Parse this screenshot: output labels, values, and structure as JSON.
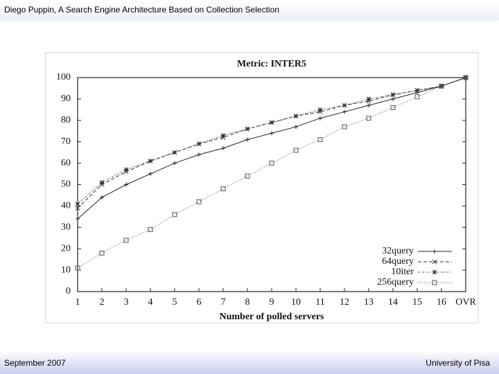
{
  "header": {
    "title": "Diego Puppin, A Search Engine Architecture Based on Collection Selection"
  },
  "footer": {
    "left": "September 2007",
    "right": "University of Pisa"
  },
  "chart_data": {
    "type": "line",
    "title": "Metric: INTER5",
    "x_label": "Number of polled servers",
    "categories": [
      "1",
      "2",
      "3",
      "4",
      "5",
      "6",
      "7",
      "8",
      "9",
      "10",
      "11",
      "12",
      "13",
      "14",
      "15",
      "16",
      "OVR"
    ],
    "ylim": [
      0,
      100
    ],
    "yticks": [
      0,
      10,
      20,
      30,
      40,
      50,
      60,
      70,
      80,
      90,
      100
    ],
    "legend": "lower right",
    "series": [
      {
        "name": "32query",
        "color": "#222222",
        "dash": "solid",
        "marker": "plus",
        "values": [
          34,
          44,
          50,
          55,
          60,
          64,
          67,
          71,
          74,
          77,
          81,
          84,
          87,
          90,
          93,
          96,
          100
        ]
      },
      {
        "name": "64query",
        "color": "#333333",
        "dash": "dashed",
        "marker": "cross",
        "values": [
          39,
          50,
          56,
          61,
          65,
          69,
          72,
          76,
          79,
          82,
          84,
          87,
          89,
          92,
          94,
          96,
          100
        ]
      },
      {
        "name": "10iter",
        "color": "#333333",
        "dash": "dashdot",
        "marker": "star",
        "values": [
          41,
          51,
          57,
          61,
          65,
          69,
          73,
          76,
          79,
          82,
          85,
          87,
          90,
          92,
          94,
          96,
          100
        ]
      },
      {
        "name": "256query",
        "color": "#555555",
        "dash": "dotted",
        "marker": "square",
        "values": [
          11,
          18,
          24,
          29,
          36,
          42,
          48,
          54,
          60,
          66,
          71,
          77,
          81,
          86,
          91,
          96,
          100
        ]
      }
    ]
  }
}
